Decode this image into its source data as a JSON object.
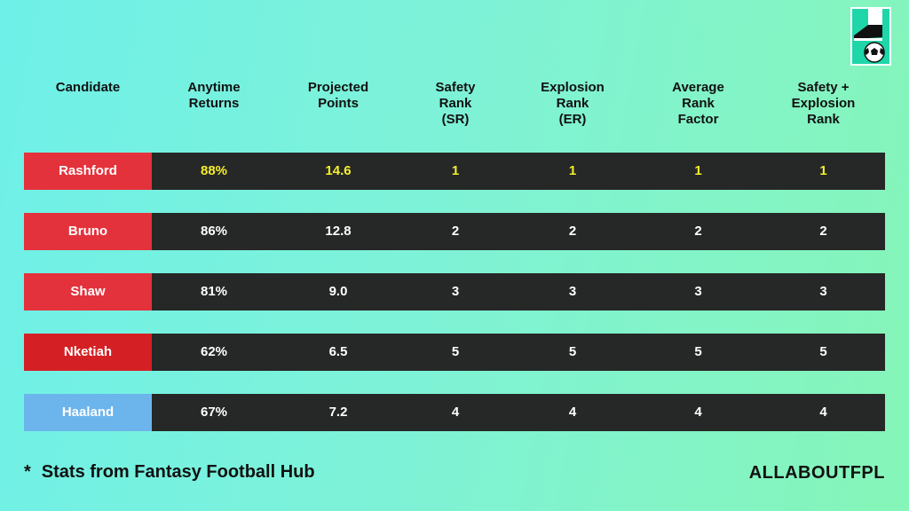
{
  "headers": [
    "Candidate",
    "Anytime\nReturns",
    "Projected\nPoints",
    "Safety\nRank\n(SR)",
    "Explosion\nRank\n(ER)",
    "Average\nRank\nFactor",
    "Safety +\nExplosion\nRank"
  ],
  "rows": [
    {
      "name": "Rashford",
      "returns": "88%",
      "points": "14.6",
      "sr": "1",
      "er": "1",
      "avg": "1",
      "ser": "1",
      "color": "#e3323c",
      "highlight": true
    },
    {
      "name": "Bruno",
      "returns": "86%",
      "points": "12.8",
      "sr": "2",
      "er": "2",
      "avg": "2",
      "ser": "2",
      "color": "#e3323c",
      "highlight": false
    },
    {
      "name": "Shaw",
      "returns": "81%",
      "points": "9.0",
      "sr": "3",
      "er": "3",
      "avg": "3",
      "ser": "3",
      "color": "#e3323c",
      "highlight": false
    },
    {
      "name": "Nketiah",
      "returns": "62%",
      "points": "6.5",
      "sr": "5",
      "er": "5",
      "avg": "5",
      "ser": "5",
      "color": "#d42024",
      "highlight": false
    },
    {
      "name": "Haaland",
      "returns": "67%",
      "points": "7.2",
      "sr": "4",
      "er": "4",
      "avg": "4",
      "ser": "4",
      "color": "#6cb4ec",
      "highlight": false
    }
  ],
  "footnote": {
    "star": "*",
    "text": "Stats from Fantasy Football Hub"
  },
  "brand": "ALLABOUTFPL",
  "colors": {
    "highlight_text": "#f5ee2b",
    "row_bg": "#262827"
  },
  "logo_icon": "boot-and-football-icon"
}
